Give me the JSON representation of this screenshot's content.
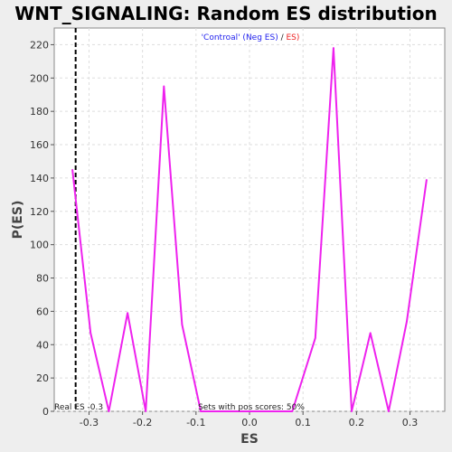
{
  "chart_data": {
    "type": "line",
    "title": "WNT_SIGNALING: Random ES distribution",
    "xlabel": "ES",
    "ylabel": "P(ES)",
    "xlim": [
      -0.365,
      0.365
    ],
    "ylim": [
      0,
      230
    ],
    "xticks": [
      -0.3,
      -0.2,
      -0.1,
      0.0,
      0.1,
      0.2,
      0.3
    ],
    "xtick_labels": [
      "-0.3",
      "-0.2",
      "-0.1",
      "0.0",
      "0.1",
      "0.2",
      "0.3"
    ],
    "yticks": [
      0,
      20,
      40,
      60,
      80,
      100,
      120,
      140,
      160,
      180,
      200,
      220
    ],
    "grid": true,
    "legend": {
      "placement": "top-center",
      "parts": [
        {
          "text": "'Controal' (Neg ES)",
          "color": "#2222ee"
        },
        {
          "text": "/ ",
          "color": "#222222"
        },
        {
          "text": "ES)",
          "color": "#ee2222"
        }
      ]
    },
    "series": [
      {
        "color": "#ee22ee",
        "x": [
          -0.331,
          -0.297,
          -0.263,
          -0.228,
          -0.194,
          -0.16,
          -0.126,
          -0.091,
          -0.057,
          -0.023,
          0.011,
          0.046,
          0.08,
          0.123,
          0.157,
          0.191,
          0.226,
          0.26,
          0.294,
          0.331
        ],
        "y": [
          145,
          47,
          0,
          59,
          0,
          195,
          52,
          0,
          0,
          0,
          0,
          0,
          0,
          44,
          218,
          0,
          47,
          0,
          54,
          139
        ]
      }
    ],
    "reference_line": {
      "x": -0.325,
      "style": "dashed",
      "color": "#000000"
    },
    "annotations": {
      "real_es": "Real ES -0.3",
      "pos_scores": "Sets with pos scores: 50%"
    }
  }
}
